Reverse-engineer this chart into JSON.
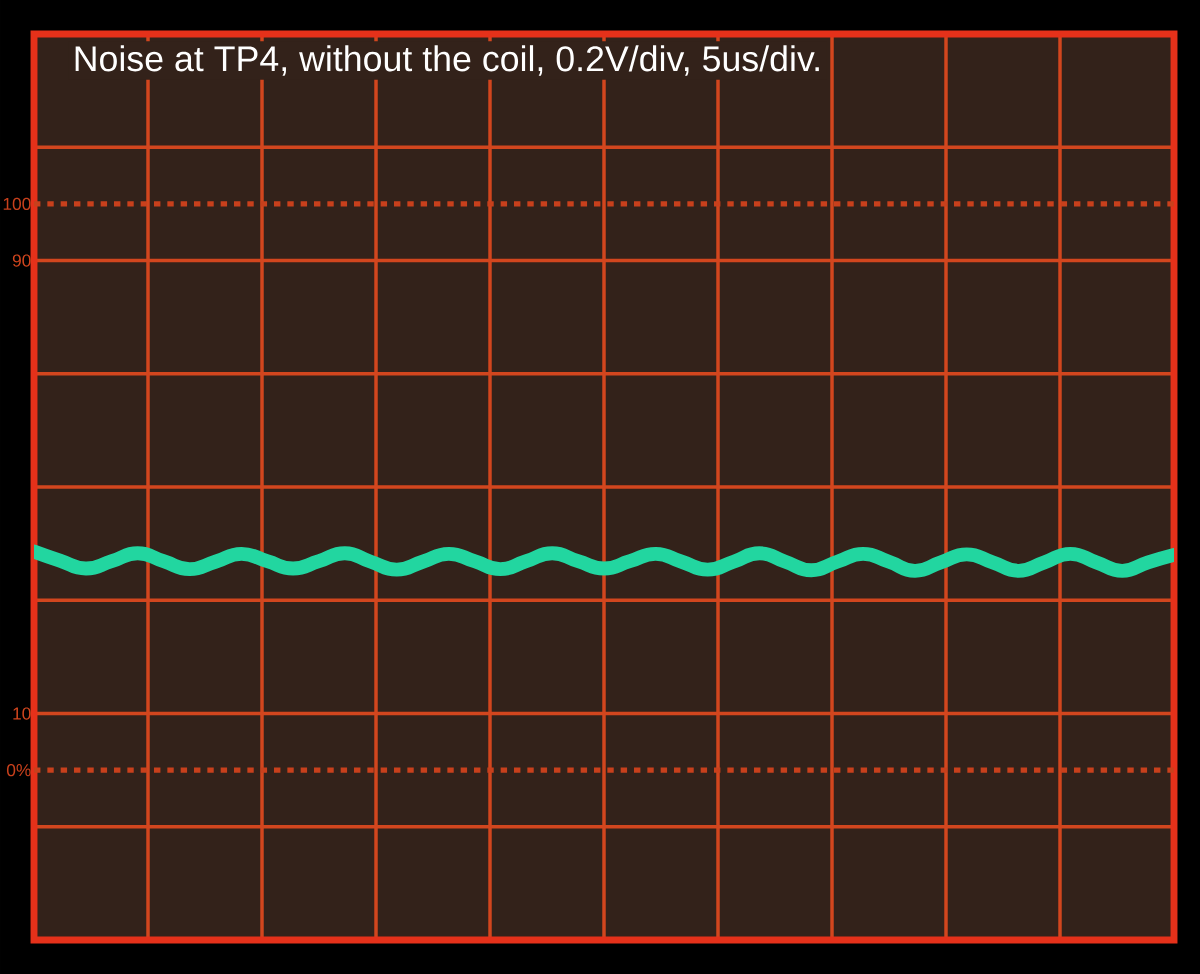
{
  "chart_data": {
    "type": "line",
    "title": "Noise at TP4, without the coil, 0.2V/div, 5us/div.",
    "categories": [
      null,
      null,
      null,
      null,
      null,
      null,
      null,
      null,
      null,
      null,
      null,
      null,
      null,
      null,
      null,
      null,
      null,
      null,
      null,
      null,
      null,
      null,
      null,
      null,
      null,
      null,
      null,
      null,
      null,
      null,
      null,
      null,
      null,
      null,
      null,
      null,
      null,
      null,
      null,
      null,
      null,
      null,
      null,
      null,
      null
    ],
    "series": [
      {
        "color": "#22d6a0",
        "values": [
          38.6,
          37.0,
          35.6,
          36.9,
          38.3,
          36.9,
          35.5,
          36.8,
          38.2,
          36.9,
          35.6,
          36.9,
          38.3,
          36.8,
          35.4,
          36.8,
          38.2,
          36.9,
          35.5,
          36.9,
          38.3,
          36.9,
          35.6,
          36.9,
          38.2,
          36.8,
          35.4,
          36.8,
          38.3,
          36.8,
          35.3,
          36.8,
          38.2,
          36.8,
          35.2,
          36.7,
          38.1,
          36.7,
          35.2,
          36.7,
          38.2,
          36.7,
          35.2,
          36.7,
          38.0
        ]
      }
    ],
    "ylim": [
      -30,
      130
    ],
    "yticks": [
      {
        "value": -10,
        "label": null
      },
      10,
      {
        "value": 30,
        "label": null
      },
      {
        "value": 50,
        "label": null
      },
      {
        "value": 70,
        "label": null
      },
      90,
      {
        "value": 110,
        "label": null
      }
    ],
    "grid": true,
    "ref_lines": [
      {
        "axis": "y",
        "value": 0,
        "label": "0%",
        "color": "#c8401c",
        "line_style": "dotted"
      },
      {
        "axis": "y",
        "value": 100,
        "label": "100",
        "color": "#c8401c",
        "line_style": "dotted"
      }
    ]
  }
}
